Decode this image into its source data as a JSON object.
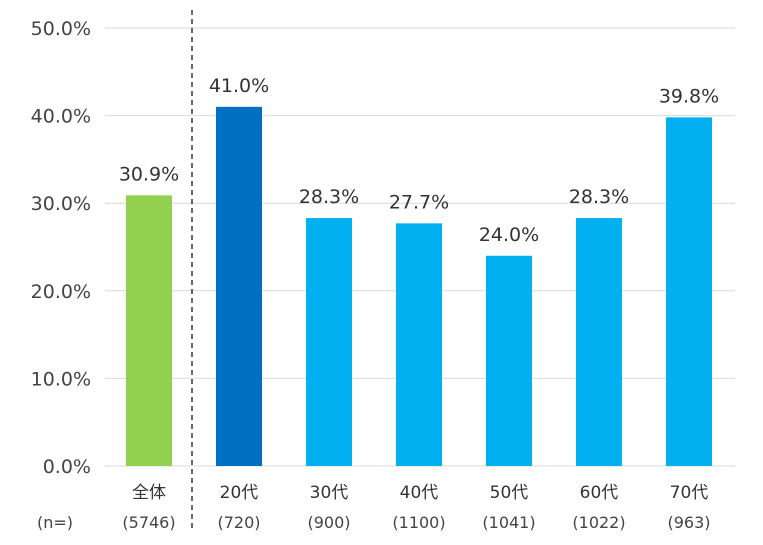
{
  "chart_data": {
    "type": "bar",
    "categories": [
      "全体",
      "20代",
      "30代",
      "40代",
      "50代",
      "60代",
      "70代"
    ],
    "sample_sizes": [
      "(5746)",
      "(720)",
      "(900)",
      "(1100)",
      "(1041)",
      "(1022)",
      "(963)"
    ],
    "sample_label": "(n=)",
    "values": [
      30.9,
      41.0,
      28.3,
      27.7,
      24.0,
      28.3,
      39.8
    ],
    "value_labels": [
      "30.9%",
      "41.0%",
      "28.3%",
      "27.7%",
      "24.0%",
      "28.3%",
      "39.8%"
    ],
    "yticks": [
      0,
      10,
      20,
      30,
      40,
      50
    ],
    "ytick_labels": [
      "0.0%",
      "10.0%",
      "20.0%",
      "30.0%",
      "40.0%",
      "50.0%"
    ],
    "ylim": [
      0,
      50
    ],
    "grid": true,
    "separator_after_first": true,
    "colors": {
      "overall": "#92d050",
      "highlight": "#0070c0",
      "default": "#00b0f0",
      "grid": "#d9d9d9",
      "separator": "#333333"
    },
    "bar_colors": [
      "overall",
      "highlight",
      "default",
      "default",
      "default",
      "default",
      "default"
    ],
    "title": "",
    "xlabel": "",
    "ylabel": ""
  }
}
